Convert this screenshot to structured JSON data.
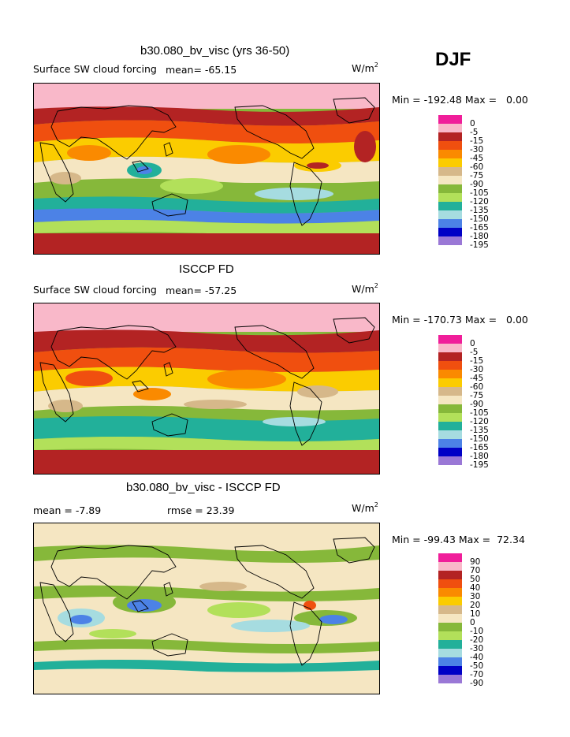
{
  "season": "DJF",
  "panels": [
    {
      "title": "b30.080_bv_visc (yrs 36-50)",
      "field_label": "Surface SW cloud forcing",
      "mean_label": "mean= -65.15",
      "unit_base": "W/m",
      "unit_exp": "2",
      "minmax": "Min = -192.48 Max =   0.00",
      "levels": [
        "0",
        "-5",
        "-15",
        "-30",
        "-45",
        "-60",
        "-75",
        "-90",
        "-105",
        "-120",
        "-135",
        "-150",
        "-165",
        "-180",
        "-195"
      ]
    },
    {
      "title": "ISCCP FD",
      "field_label": "Surface SW cloud forcing",
      "mean_label": "mean= -57.25",
      "unit_base": "W/m",
      "unit_exp": "2",
      "minmax": "Min = -170.73 Max =   0.00",
      "levels": [
        "0",
        "-5",
        "-15",
        "-30",
        "-45",
        "-60",
        "-75",
        "-90",
        "-105",
        "-120",
        "-135",
        "-150",
        "-165",
        "-180",
        "-195"
      ]
    },
    {
      "title": "b30.080_bv_visc - ISCCP FD",
      "mean_label": "mean =  -7.89",
      "rmse_label": "rmse =  23.39",
      "unit_base": "W/m",
      "unit_exp": "2",
      "minmax": "Min = -99.43 Max =  72.34",
      "levels": [
        "90",
        "70",
        "50",
        "40",
        "30",
        "20",
        "10",
        "0",
        "-10",
        "-20",
        "-30",
        "-40",
        "-50",
        "-70",
        "-90"
      ]
    }
  ],
  "colors": {
    "fill_scale": [
      "#f01e9a",
      "#f9b8c9",
      "#b32323",
      "#f04f0f",
      "#fa8a00",
      "#fbcc00",
      "#d6b88a",
      "#f5e6c2",
      "#86b83a",
      "#b2e05a",
      "#22b09a",
      "#a6dce0",
      "#4c82e6",
      "#0000c6",
      "#9a78d6"
    ]
  }
}
